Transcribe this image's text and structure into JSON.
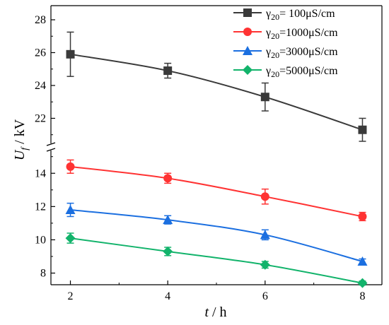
{
  "chart_data": {
    "type": "line",
    "xlabel_var": "t",
    "xlabel_unit": " / h",
    "ylabel_var": "U",
    "ylabel_sub": "f",
    "ylabel_unit": " / kV",
    "x": [
      2,
      4,
      6,
      8
    ],
    "x_ticks": [
      "2",
      "4",
      "6",
      "8"
    ],
    "xlim": [
      1.6,
      8.4
    ],
    "y_axis_break": true,
    "y_lower": {
      "lim": [
        7.3,
        15.2
      ],
      "ticks": [
        8,
        10,
        12,
        14
      ]
    },
    "y_upper": {
      "lim": [
        20.6,
        28
      ],
      "ticks": [
        22,
        24,
        26,
        28
      ]
    },
    "grid": false,
    "legend_position": "top-right",
    "series": [
      {
        "name_prefix": "γ",
        "name_sub": "20",
        "name_value": "=  100μS/cm",
        "color": "#3a3a3a",
        "marker": "square",
        "values": [
          25.9,
          24.9,
          23.3,
          21.3
        ],
        "errors": [
          1.35,
          0.45,
          0.85,
          0.7
        ]
      },
      {
        "name_prefix": "γ",
        "name_sub": "20",
        "name_value": "=1000μS/cm",
        "color": "#ff3333",
        "marker": "circle",
        "values": [
          14.4,
          13.7,
          12.6,
          11.4
        ],
        "errors": [
          0.4,
          0.3,
          0.45,
          0.25
        ]
      },
      {
        "name_prefix": "γ",
        "name_sub": "20",
        "name_value": "=3000μS/cm",
        "color": "#1b6fe0",
        "marker": "triangle",
        "values": [
          11.8,
          11.2,
          10.3,
          8.7
        ],
        "errors": [
          0.4,
          0.25,
          0.3,
          0.15
        ]
      },
      {
        "name_prefix": "γ",
        "name_sub": "20",
        "name_value": "=5000μS/cm",
        "color": "#12b36b",
        "marker": "diamond",
        "values": [
          10.1,
          9.3,
          8.5,
          7.4
        ],
        "errors": [
          0.3,
          0.25,
          0.2,
          0.12
        ]
      }
    ]
  }
}
